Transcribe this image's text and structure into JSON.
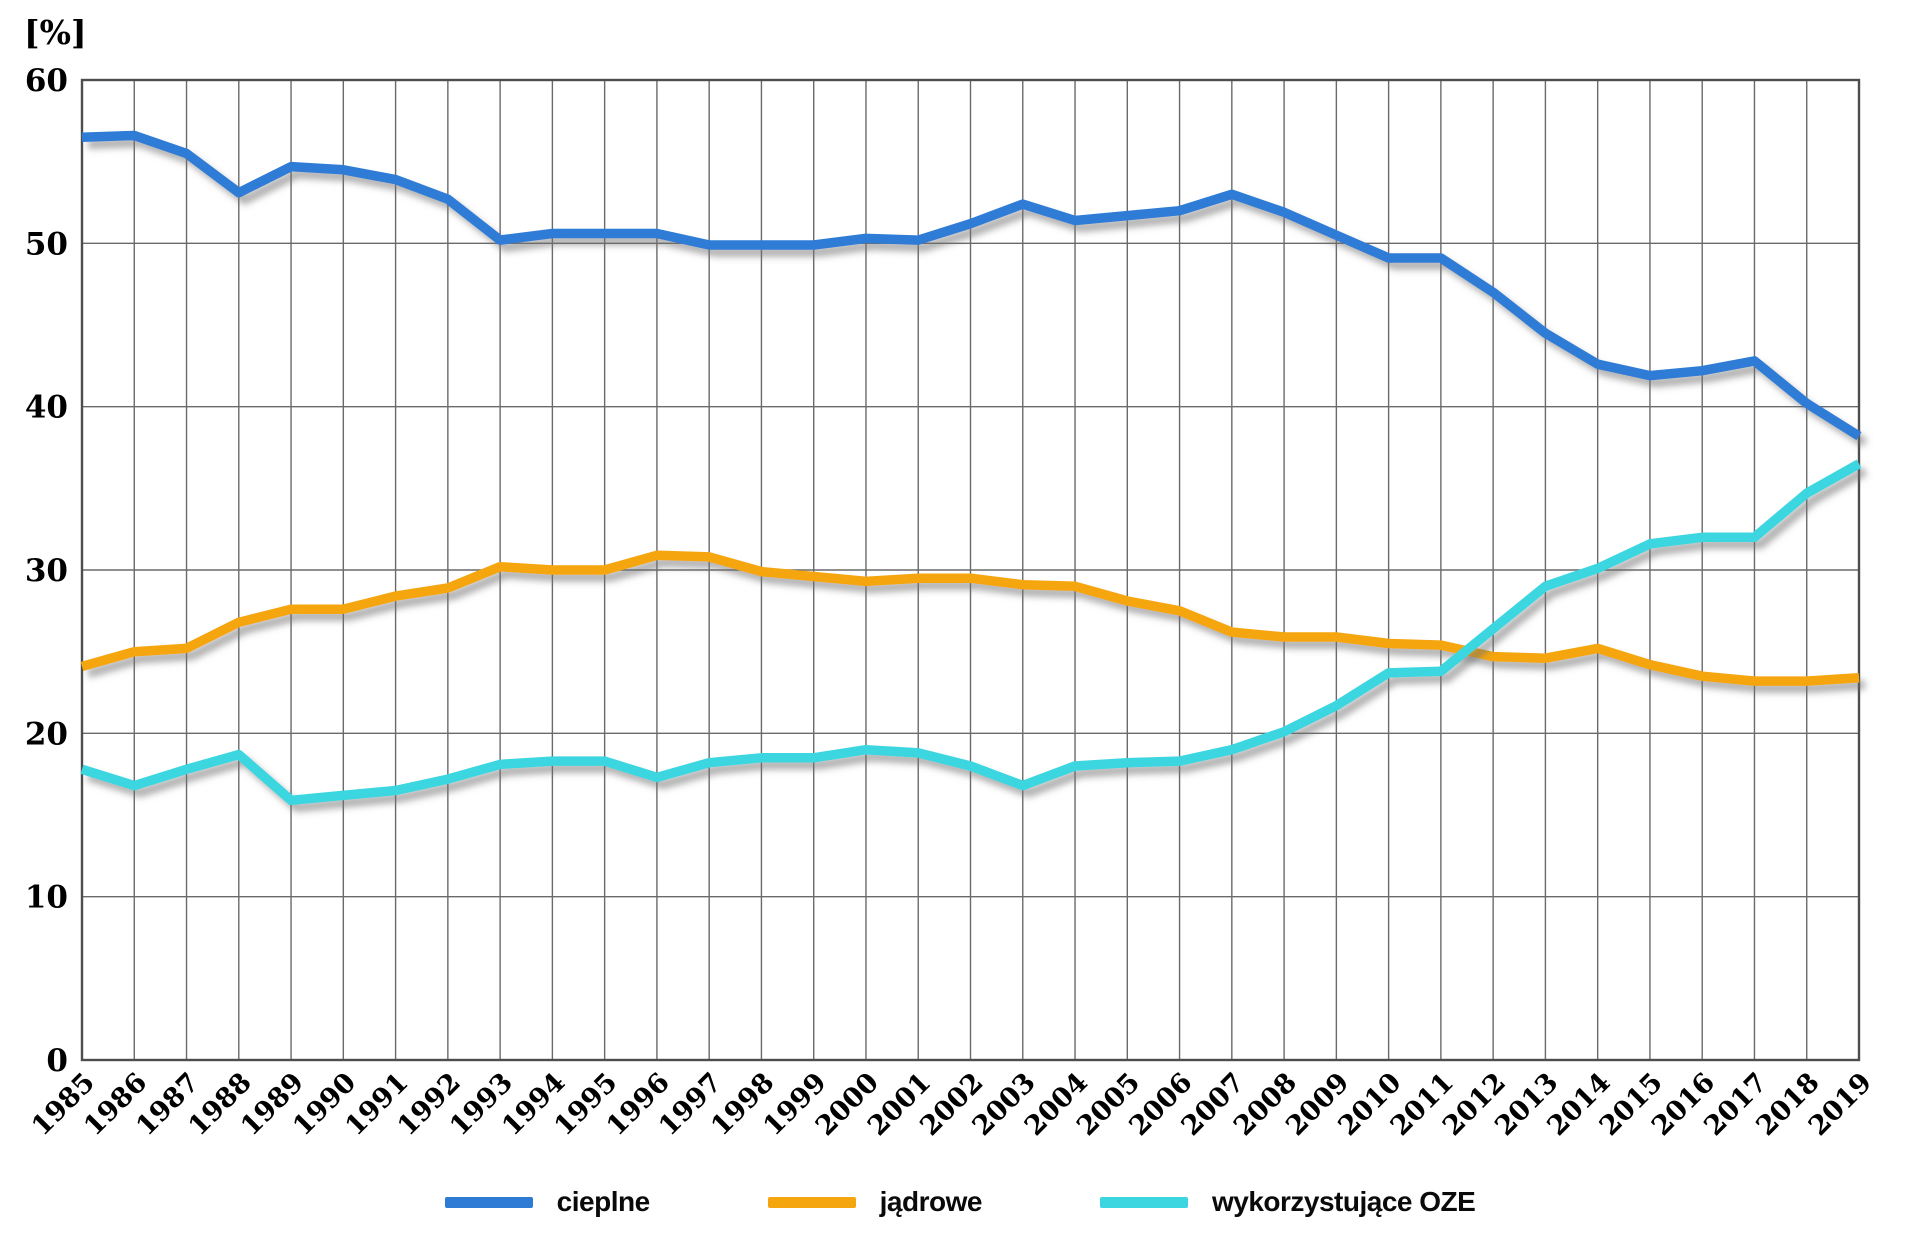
{
  "unit_label": "[%]",
  "chart_data": {
    "type": "line",
    "title": "",
    "xlabel": "",
    "ylabel": "[%]",
    "x": [
      "1985",
      "1986",
      "1987",
      "1988",
      "1989",
      "1990",
      "1991",
      "1992",
      "1993",
      "1994",
      "1995",
      "1996",
      "1997",
      "1998",
      "1999",
      "2000",
      "2001",
      "2002",
      "2003",
      "2004",
      "2005",
      "2006",
      "2007",
      "2008",
      "2009",
      "2010",
      "2011",
      "2012",
      "2013",
      "2014",
      "2015",
      "2016",
      "2017",
      "2018",
      "2019"
    ],
    "ylim": [
      0,
      60
    ],
    "ytick_step": 10,
    "grid": true,
    "legend_position": "bottom",
    "gridline_color": "#6a6a6a",
    "frame_color": "#4d4d4d",
    "series": [
      {
        "name": "cieplne",
        "color": "#2E7BD6",
        "values": [
          56.5,
          56.6,
          55.5,
          53.1,
          54.7,
          54.5,
          53.9,
          52.7,
          50.2,
          50.6,
          50.6,
          50.6,
          49.9,
          49.9,
          49.9,
          50.3,
          50.2,
          51.2,
          52.4,
          51.4,
          51.7,
          52.0,
          53.0,
          51.9,
          50.5,
          49.1,
          49.1,
          47.0,
          44.5,
          42.6,
          41.9,
          42.2,
          42.8,
          40.2,
          38.2
        ]
      },
      {
        "name": "jądrowe",
        "color": "#F5A50D",
        "values": [
          24.1,
          25.0,
          25.2,
          26.8,
          27.6,
          27.6,
          28.4,
          28.9,
          30.2,
          30.0,
          30.0,
          30.9,
          30.8,
          29.9,
          29.6,
          29.3,
          29.5,
          29.5,
          29.1,
          29.0,
          28.1,
          27.5,
          26.2,
          25.9,
          25.9,
          25.5,
          25.4,
          24.7,
          24.6,
          25.2,
          24.2,
          23.5,
          23.2,
          23.2,
          23.4
        ]
      },
      {
        "name": "wykorzystujące OZE",
        "color": "#3BD6DF",
        "values": [
          17.8,
          16.8,
          17.8,
          18.7,
          15.9,
          16.2,
          16.5,
          17.2,
          18.1,
          18.3,
          18.3,
          17.3,
          18.2,
          18.5,
          18.5,
          19.0,
          18.8,
          18.0,
          16.8,
          18.0,
          18.2,
          18.3,
          19.0,
          20.1,
          21.7,
          23.7,
          23.8,
          26.4,
          29.0,
          30.1,
          31.6,
          32.0,
          32.0,
          34.7,
          36.5
        ]
      }
    ]
  }
}
